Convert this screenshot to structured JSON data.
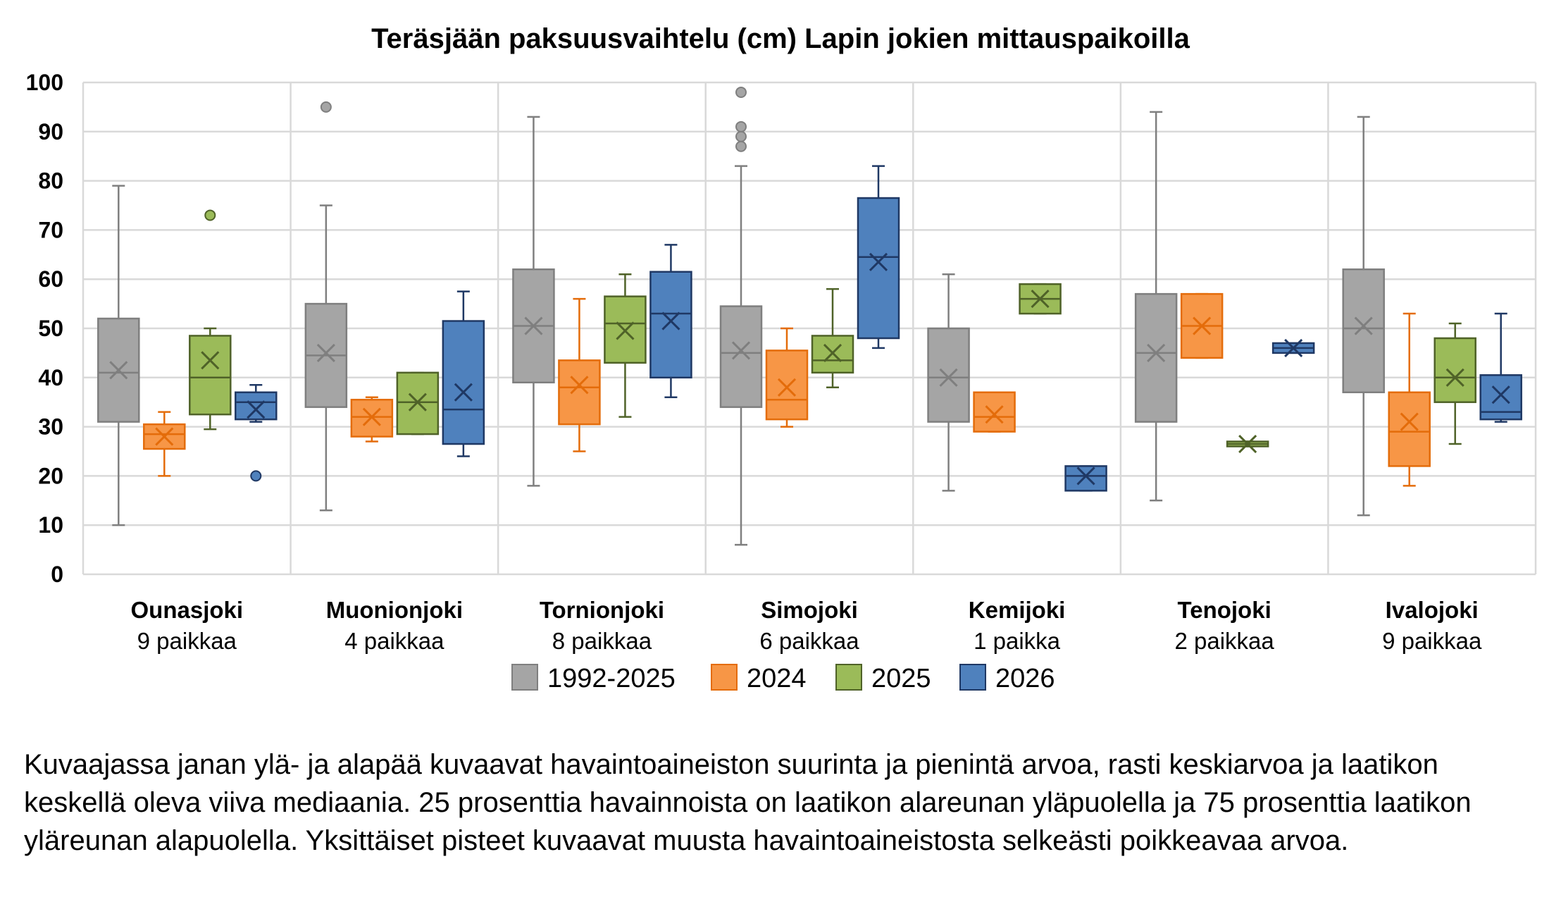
{
  "chart_data": {
    "type": "boxplot",
    "title": "Teräsjään paksuusvaihtelu (cm) Lapin jokien mittauspaikoilla",
    "ylim": [
      0,
      100
    ],
    "yticks": [
      "0",
      "10",
      "20",
      "30",
      "40",
      "50",
      "60",
      "70",
      "80",
      "90",
      "100"
    ],
    "grid": true,
    "legend_position": "bottom",
    "series": [
      {
        "name": "1992-2025",
        "color": "#A5A5A5",
        "stroke": "#7F7F7F"
      },
      {
        "name": "2024",
        "color": "#F79646",
        "stroke": "#E46C0A"
      },
      {
        "name": "2025",
        "color": "#9BBB59",
        "stroke": "#4F6228"
      },
      {
        "name": "2026",
        "color": "#4F81BD",
        "stroke": "#1F3864"
      }
    ],
    "categories": [
      {
        "name": "Ounasjoki",
        "sub": "9 paikkaa",
        "boxes": [
          {
            "min": 10,
            "q1": 31,
            "median": 41,
            "q3": 52,
            "max": 79,
            "mean": 41.5,
            "outliers": []
          },
          {
            "min": 20,
            "q1": 25.5,
            "median": 28.5,
            "q3": 30.5,
            "max": 33,
            "mean": 28,
            "outliers": []
          },
          {
            "min": 29.5,
            "q1": 32.5,
            "median": 40,
            "q3": 48.5,
            "max": 50,
            "mean": 43.5,
            "outliers": [
              73
            ]
          },
          {
            "min": 31,
            "q1": 31.5,
            "median": 35,
            "q3": 37,
            "max": 38.5,
            "mean": 33.5,
            "outliers": [
              20
            ]
          }
        ]
      },
      {
        "name": "Muonionjoki",
        "sub": "4 paikkaa",
        "boxes": [
          {
            "min": 13,
            "q1": 34,
            "median": 44.5,
            "q3": 55,
            "max": 75,
            "mean": 45,
            "outliers": [
              95
            ]
          },
          {
            "min": 27,
            "q1": 28,
            "median": 32,
            "q3": 35.5,
            "max": 36,
            "mean": 32,
            "outliers": []
          },
          {
            "min": 28.5,
            "q1": 28.5,
            "median": 35,
            "q3": 41,
            "max": 41,
            "mean": 35,
            "outliers": []
          },
          {
            "min": 24,
            "q1": 26.5,
            "median": 33.5,
            "q3": 51.5,
            "max": 57.5,
            "mean": 37,
            "outliers": []
          }
        ]
      },
      {
        "name": "Tornionjoki",
        "sub": "8 paikkaa",
        "boxes": [
          {
            "min": 18,
            "q1": 39,
            "median": 50.5,
            "q3": 62,
            "max": 93,
            "mean": 50.5,
            "outliers": []
          },
          {
            "min": 25,
            "q1": 30.5,
            "median": 38,
            "q3": 43.5,
            "max": 56,
            "mean": 38.5,
            "outliers": []
          },
          {
            "min": 32,
            "q1": 43,
            "median": 51,
            "q3": 56.5,
            "max": 61,
            "mean": 49.5,
            "outliers": []
          },
          {
            "min": 36,
            "q1": 40,
            "median": 53,
            "q3": 61.5,
            "max": 67,
            "mean": 51.5,
            "outliers": []
          }
        ]
      },
      {
        "name": "Simojoki",
        "sub": "6 paikkaa",
        "boxes": [
          {
            "min": 6,
            "q1": 34,
            "median": 45,
            "q3": 54.5,
            "max": 83,
            "mean": 45.5,
            "outliers": [
              87,
              89,
              91,
              98
            ]
          },
          {
            "min": 30,
            "q1": 31.5,
            "median": 35.5,
            "q3": 45.5,
            "max": 50,
            "mean": 38,
            "outliers": []
          },
          {
            "min": 38,
            "q1": 41,
            "median": 43.5,
            "q3": 48.5,
            "max": 58,
            "mean": 45,
            "outliers": []
          },
          {
            "min": 46,
            "q1": 48,
            "median": 64.5,
            "q3": 76.5,
            "max": 83,
            "mean": 63.5,
            "outliers": []
          }
        ]
      },
      {
        "name": "Kemijoki",
        "sub": "1 paikka",
        "boxes": [
          {
            "min": 17,
            "q1": 31,
            "median": 40,
            "q3": 50,
            "max": 61,
            "mean": 40,
            "outliers": []
          },
          {
            "min": 29,
            "q1": 29,
            "median": 32,
            "q3": 37,
            "max": 37,
            "mean": 32.5,
            "outliers": []
          },
          {
            "min": 53,
            "q1": 53,
            "median": 56,
            "q3": 59,
            "max": 59,
            "mean": 56,
            "outliers": []
          },
          {
            "min": 17,
            "q1": 17,
            "median": 20,
            "q3": 22,
            "max": 22,
            "mean": 20,
            "outliers": []
          }
        ]
      },
      {
        "name": "Tenojoki",
        "sub": "2 paikkaa",
        "boxes": [
          {
            "min": 15,
            "q1": 31,
            "median": 45,
            "q3": 57,
            "max": 94,
            "mean": 45,
            "outliers": []
          },
          {
            "min": 44,
            "q1": 44,
            "median": 50.5,
            "q3": 57,
            "max": 57,
            "mean": 50.5,
            "outliers": []
          },
          {
            "min": 26,
            "q1": 26,
            "median": 26.5,
            "q3": 27,
            "max": 27,
            "mean": 26.5,
            "outliers": []
          },
          {
            "min": 45,
            "q1": 45,
            "median": 46,
            "q3": 47,
            "max": 47,
            "mean": 46,
            "outliers": []
          }
        ]
      },
      {
        "name": "Ivalojoki",
        "sub": "9 paikkaa",
        "boxes": [
          {
            "min": 12,
            "q1": 37,
            "median": 50,
            "q3": 62,
            "max": 93,
            "mean": 50.5,
            "outliers": []
          },
          {
            "min": 18,
            "q1": 22,
            "median": 29,
            "q3": 37,
            "max": 53,
            "mean": 31,
            "outliers": []
          },
          {
            "min": 26.5,
            "q1": 35,
            "median": 40,
            "q3": 48,
            "max": 51,
            "mean": 40,
            "outliers": []
          },
          {
            "min": 31,
            "q1": 31.5,
            "median": 33,
            "q3": 40.5,
            "max": 53,
            "mean": 36.5,
            "outliers": []
          }
        ]
      }
    ]
  },
  "caption": "Kuvaajassa janan ylä- ja alapää kuvaavat havaintoaineiston suurinta ja pienintä arvoa, rasti keskiarvoa ja laatikon keskellä oleva viiva mediaania. 25 prosenttia havainnoista on laatikon alareunan yläpuolella ja 75 prosenttia laatikon yläreunan alapuolella. Yksittäiset pisteet kuvaavat muusta havaintoaineistosta selkeästi poikkeavaa arvoa."
}
